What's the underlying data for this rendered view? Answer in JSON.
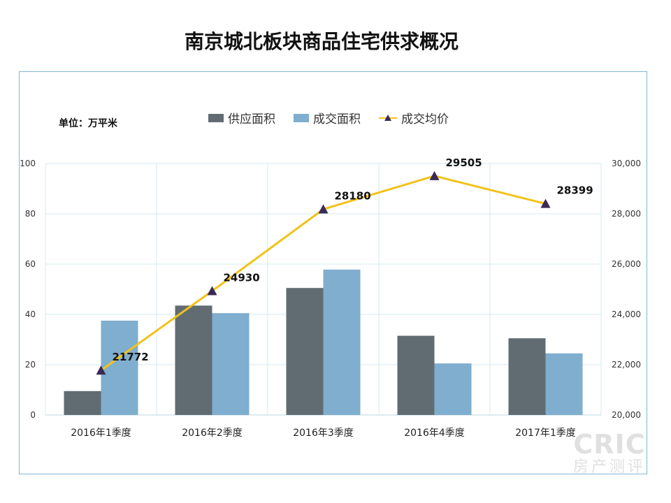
{
  "title": "南京城北板块商品住宅供求概况",
  "unit_label": "单位：万平米",
  "watermark": {
    "line1": "CRIC",
    "line2": "房产测评"
  },
  "colors": {
    "supply": "#616c72",
    "deal": "#7faecf",
    "price": "#f2c21a",
    "marker": "#3a2a55",
    "grid": "#d6e8f0",
    "frame": "#7fb8d8"
  },
  "chart_data": {
    "type": "bar",
    "categories": [
      "2016年1季度",
      "2016年2季度",
      "2016年3季度",
      "2016年4季度",
      "2017年1季度"
    ],
    "series": [
      {
        "name": "供应面积",
        "type": "bar",
        "axis": "left",
        "values": [
          9.5,
          43.5,
          50.5,
          31.5,
          30.5
        ]
      },
      {
        "name": "成交面积",
        "type": "bar",
        "axis": "left",
        "values": [
          37.5,
          40.5,
          57.8,
          20.5,
          24.5
        ]
      },
      {
        "name": "成交均价",
        "type": "line",
        "axis": "right",
        "values": [
          21772,
          24930,
          28180,
          29505,
          28399
        ]
      }
    ],
    "price_labels": [
      "21772",
      "24930",
      "28180",
      "29505",
      "28399"
    ],
    "ylim_left": [
      0,
      100
    ],
    "ylim_right": [
      20000,
      30000
    ],
    "left_ticks": [
      "0",
      "20",
      "40",
      "60",
      "80",
      "100"
    ],
    "right_ticks": [
      "20,000",
      "22,000",
      "24,000",
      "26,000",
      "28,000",
      "30,000"
    ],
    "legend": [
      "供应面积",
      "成交面积",
      "成交均价"
    ],
    "legend_position": "top",
    "grid": true
  }
}
